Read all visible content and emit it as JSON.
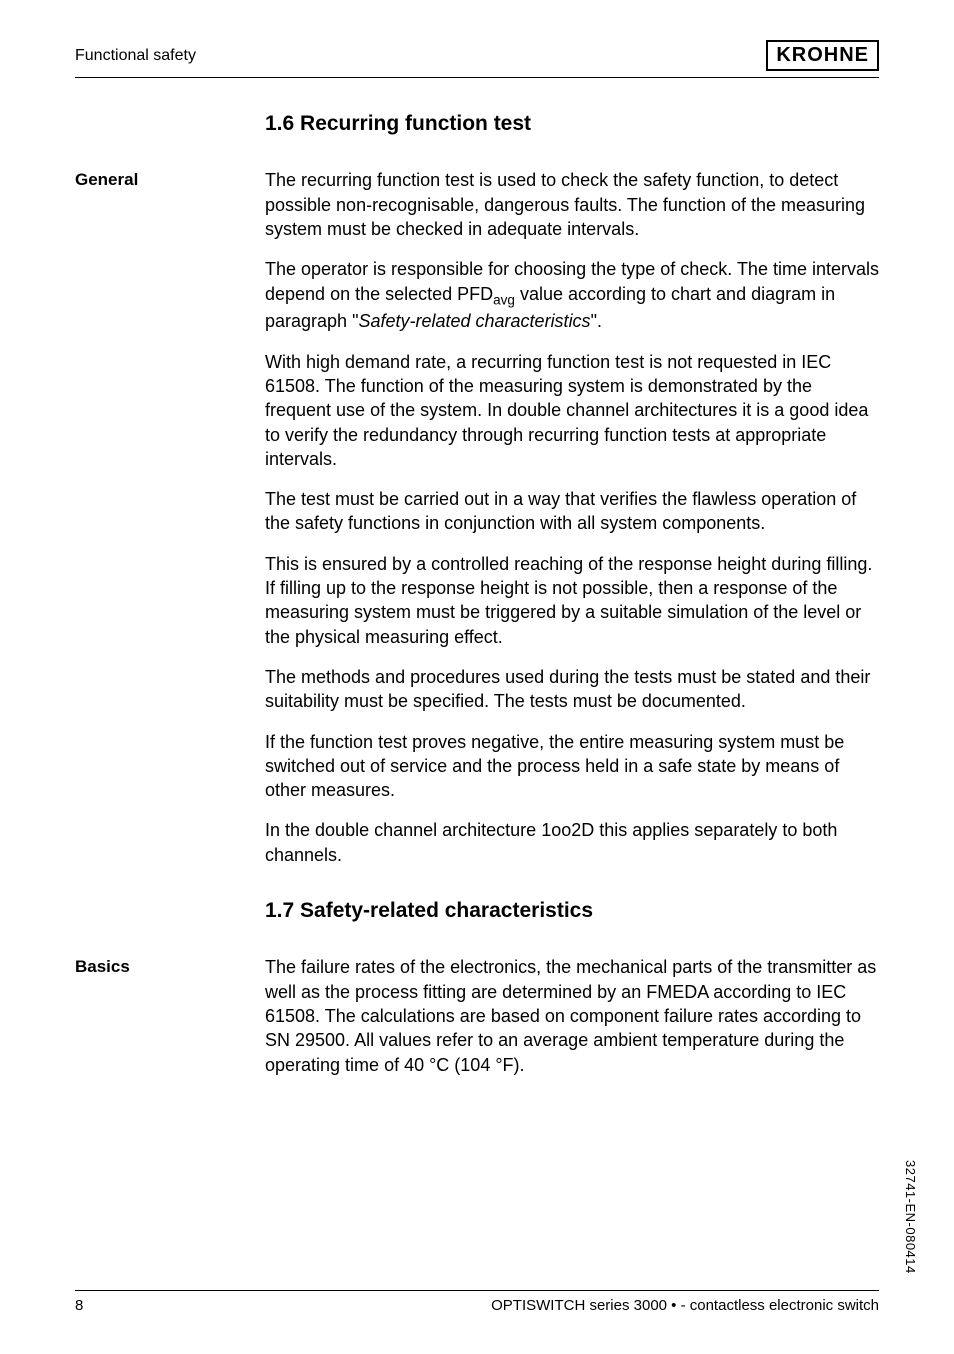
{
  "header": {
    "left": "Functional safety",
    "logo_text": "KROHNE"
  },
  "sections": [
    {
      "heading": "1.6  Recurring function test",
      "blocks": [
        {
          "label": "General",
          "paragraphs": [
            {
              "html": "The recurring function test is used to check the safety function, to detect possible non-recognisable, dangerous faults. The function of the measuring system must be checked in adequate intervals."
            },
            {
              "html": "The operator is responsible for choosing the type of check. The time intervals depend on the selected PFD<sub>avg</sub> value according to chart and diagram in paragraph \"<span class=\"italic\">Safety-related characteristics</span>\"."
            },
            {
              "html": "With high demand rate, a recurring function test is not requested in IEC 61508. The function of the measuring system is demonstrated by the frequent use of the system. In double channel architectures it is a good idea to verify the redundancy through recurring function tests at appropriate intervals."
            },
            {
              "html": "The test must be carried out in a way that verifies the flawless operation of the safety functions in conjunction with all system components."
            },
            {
              "html": "This is ensured by a controlled reaching of the response height during filling. If filling up to the response height is not possible, then a response of the measuring system must be triggered by a suitable simulation of the level or the physical measuring effect."
            },
            {
              "html": "The methods and procedures used during the tests must be stated and their suitability must be specified. The tests must be documented."
            },
            {
              "html": "If the function test proves negative, the entire measuring system must be switched out of service and the process held in a safe state by means of other measures."
            },
            {
              "html": "In the double channel architecture 1oo2D this applies separately to both channels."
            }
          ]
        }
      ]
    },
    {
      "heading": "1.7  Safety-related characteristics",
      "blocks": [
        {
          "label": "Basics",
          "paragraphs": [
            {
              "html": "The failure rates of the electronics, the mechanical parts of the transmitter as well as the process fitting are determined by an FMEDA according to IEC 61508. The calculations are based on component failure rates according to SN 29500. All values refer to an average ambient temperature during the operating time of 40 °C (104 °F)."
            }
          ]
        }
      ]
    }
  ],
  "footer": {
    "page": "8",
    "product": "OPTISWITCH series 3000 • - contactless electronic switch"
  },
  "side_code": "32741-EN-080414"
}
